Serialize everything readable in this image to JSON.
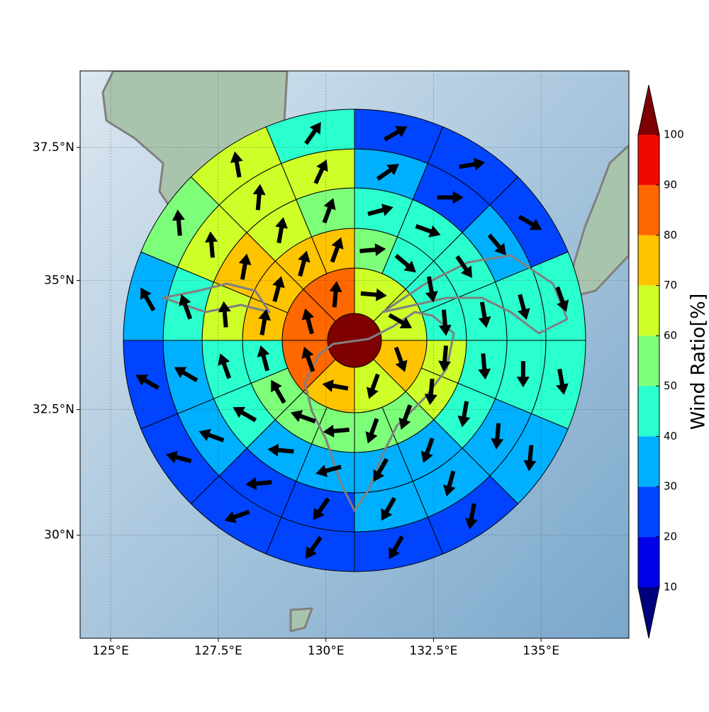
{
  "chart_data": {
    "type": "polar-grid-map",
    "xlim": [
      124.29,
      137.04
    ],
    "ylim": [
      27.9,
      38.9
    ],
    "xticks": [
      {
        "value": 125,
        "label": "125°E"
      },
      {
        "value": 127.5,
        "label": "127.5°E"
      },
      {
        "value": 130,
        "label": "130°E"
      },
      {
        "value": 132.5,
        "label": "132.5°E"
      },
      {
        "value": 135,
        "label": "135°E"
      }
    ],
    "yticks": [
      {
        "value": 30,
        "label": "30°N"
      },
      {
        "value": 32.5,
        "label": "32.5°N"
      },
      {
        "value": 35,
        "label": "35°N"
      },
      {
        "value": 37.5,
        "label": "37.5°N"
      }
    ],
    "grid": true,
    "center_value": 100,
    "rings": [
      {
        "values": [
          65,
          65,
          75,
          65,
          75,
          85,
          85,
          85
        ],
        "directions": [
          95,
          120,
          160,
          200,
          280,
          340,
          345,
          5
        ]
      },
      {
        "values": [
          55,
          45,
          45,
          45,
          65,
          65,
          55,
          55,
          55,
          55,
          55,
          45,
          75,
          75,
          75,
          75
        ],
        "directions": [
          85,
          130,
          170,
          175,
          185,
          185,
          200,
          200,
          265,
          290,
          330,
          345,
          10,
          15,
          15,
          20
        ]
      },
      {
        "values": [
          45,
          45,
          45,
          45,
          45,
          45,
          35,
          35,
          35,
          35,
          45,
          45,
          65,
          75,
          65,
          55
        ],
        "directions": [
          75,
          110,
          145,
          170,
          175,
          190,
          200,
          210,
          255,
          275,
          300,
          340,
          355,
          10,
          10,
          20
        ]
      },
      {
        "values": [
          35,
          25,
          35,
          45,
          45,
          35,
          35,
          35,
          25,
          25,
          35,
          35,
          45,
          65,
          65,
          65
        ],
        "directions": [
          55,
          90,
          140,
          165,
          180,
          185,
          195,
          210,
          215,
          265,
          290,
          300,
          340,
          355,
          5,
          25
        ]
      },
      {
        "values": [
          25,
          25,
          25,
          45,
          45,
          35,
          25,
          25,
          25,
          25,
          25,
          25,
          35,
          55,
          65,
          45
        ],
        "directions": [
          60,
          80,
          120,
          160,
          170,
          185,
          190,
          210,
          215,
          250,
          285,
          300,
          330,
          355,
          350,
          35
        ]
      }
    ],
    "colorbar": {
      "label": "Wind Ratio[%]",
      "levels": [
        10,
        20,
        30,
        40,
        50,
        60,
        70,
        80,
        90,
        100
      ],
      "colors": [
        "#00007f",
        "#0000e6",
        "#0044ff",
        "#00b0ff",
        "#2affce",
        "#7dff7a",
        "#ceff29",
        "#ffc400",
        "#ff6800",
        "#f10800",
        "#7f0000"
      ],
      "ticks": [
        10,
        20,
        30,
        40,
        50,
        60,
        70,
        80,
        90,
        100
      ]
    }
  }
}
